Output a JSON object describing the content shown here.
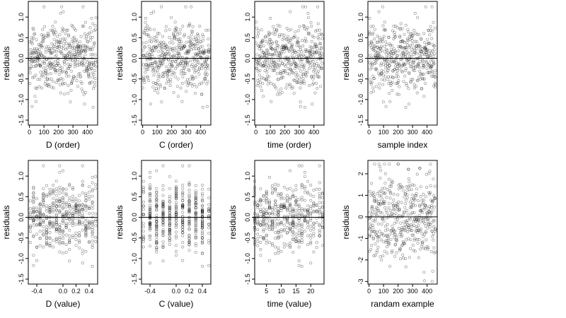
{
  "chart_data": [
    {
      "type": "scatter",
      "xlabel": "D (order)",
      "ylabel": "residuals",
      "xlim": [
        -8,
        470
      ],
      "ylim": [
        -1.62,
        1.38
      ],
      "xticks": [
        0,
        100,
        200,
        300,
        400
      ],
      "xtick_labels": [
        "0",
        "100",
        "200",
        "300",
        "400"
      ],
      "yticks": [
        -1.5,
        -1.0,
        -0.5,
        0.0,
        0.5,
        1.0
      ],
      "ytick_labels": [
        "-1.5",
        "-1.0",
        "-0.5",
        "0.0",
        "0.5",
        "1.0"
      ],
      "reference_line": 0,
      "points": []
    },
    {
      "type": "scatter",
      "xlabel": "C (order)",
      "ylabel": "residuals",
      "xlim": [
        -8,
        470
      ],
      "ylim": [
        -1.62,
        1.38
      ],
      "xticks": [
        0,
        100,
        200,
        300,
        400
      ],
      "xtick_labels": [
        "0",
        "100",
        "200",
        "300",
        "400"
      ],
      "yticks": [
        -1.5,
        -1.0,
        -0.5,
        0.0,
        0.5,
        1.0
      ],
      "ytick_labels": [
        "-1.5",
        "-1.0",
        "-0.5",
        "0.0",
        "0.5",
        "1.0"
      ],
      "reference_line": 0,
      "points": []
    },
    {
      "type": "scatter",
      "xlabel": "time (order)",
      "ylabel": "residuals",
      "xlim": [
        -8,
        470
      ],
      "ylim": [
        -1.62,
        1.38
      ],
      "xticks": [
        0,
        100,
        200,
        300,
        400
      ],
      "xtick_labels": [
        "0",
        "100",
        "200",
        "300",
        "400"
      ],
      "yticks": [
        -1.5,
        -1.0,
        -0.5,
        0.0,
        0.5,
        1.0
      ],
      "ytick_labels": [
        "-1.5",
        "-1.0",
        "-0.5",
        "0.0",
        "0.5",
        "1.0"
      ],
      "reference_line": 0,
      "points": []
    },
    {
      "type": "scatter",
      "xlabel": "sample index",
      "ylabel": "residuals",
      "xlim": [
        -8,
        470
      ],
      "ylim": [
        -1.62,
        1.38
      ],
      "xticks": [
        0,
        100,
        200,
        300,
        400
      ],
      "xtick_labels": [
        "0",
        "100",
        "200",
        "300",
        "400"
      ],
      "yticks": [
        -1.5,
        -1.0,
        -0.5,
        0.0,
        0.5,
        1.0
      ],
      "ytick_labels": [
        "-1.5",
        "-1.0",
        "-0.5",
        "0.0",
        "0.5",
        "1.0"
      ],
      "reference_line": 0,
      "points": []
    },
    {
      "type": "scatter",
      "xlabel": "D (value)",
      "ylabel": "residuals",
      "xlim": [
        -0.53,
        0.53
      ],
      "ylim": [
        -1.62,
        1.38
      ],
      "xticks": [
        -0.4,
        0.0,
        0.2,
        0.4
      ],
      "xtick_labels": [
        "-0.4",
        "0.0",
        "0.2",
        "0.4"
      ],
      "yticks": [
        -1.5,
        -1.0,
        -0.5,
        0.0,
        0.5,
        1.0
      ],
      "ytick_labels": [
        "-1.5",
        "-1.0",
        "-0.5",
        "0.0",
        "0.5",
        "1.0"
      ],
      "reference_line": 0,
      "points": []
    },
    {
      "type": "scatter",
      "xlabel": "C (value)",
      "ylabel": "residuals",
      "xlim": [
        -0.53,
        0.53
      ],
      "ylim": [
        -1.62,
        1.38
      ],
      "xticks": [
        -0.4,
        0.0,
        0.2,
        0.4
      ],
      "xtick_labels": [
        "-0.4",
        "0.0",
        "0.2",
        "0.4"
      ],
      "yticks": [
        -1.5,
        -1.0,
        -0.5,
        0.0,
        0.5,
        1.0
      ],
      "ytick_labels": [
        "-1.5",
        "-1.0",
        "-0.5",
        "0.0",
        "0.5",
        "1.0"
      ],
      "reference_line": 0,
      "points": []
    },
    {
      "type": "scatter",
      "xlabel": "time (value)",
      "ylabel": "residuals",
      "xlim": [
        1,
        24.5
      ],
      "ylim": [
        -1.62,
        1.38
      ],
      "xticks": [
        5,
        10,
        15,
        20
      ],
      "xtick_labels": [
        "5",
        "10",
        "15",
        "20"
      ],
      "yticks": [
        -1.5,
        -1.0,
        -0.5,
        0.0,
        0.5,
        1.0
      ],
      "ytick_labels": [
        "-1.5",
        "-1.0",
        "-0.5",
        "0.0",
        "0.5",
        "1.0"
      ],
      "reference_line": 0,
      "points": []
    },
    {
      "type": "scatter",
      "xlabel": "randam example",
      "ylabel": "residuals",
      "xlim": [
        -8,
        470
      ],
      "ylim": [
        -3.12,
        2.62
      ],
      "xticks": [
        0,
        100,
        200,
        300,
        400
      ],
      "xtick_labels": [
        "0",
        "100",
        "200",
        "300",
        "400"
      ],
      "yticks": [
        -3,
        -2,
        -1,
        0,
        1,
        2
      ],
      "ytick_labels": [
        "-3",
        "-2",
        "-1",
        "0",
        "1",
        "2"
      ],
      "reference_line": 0,
      "points": []
    }
  ]
}
